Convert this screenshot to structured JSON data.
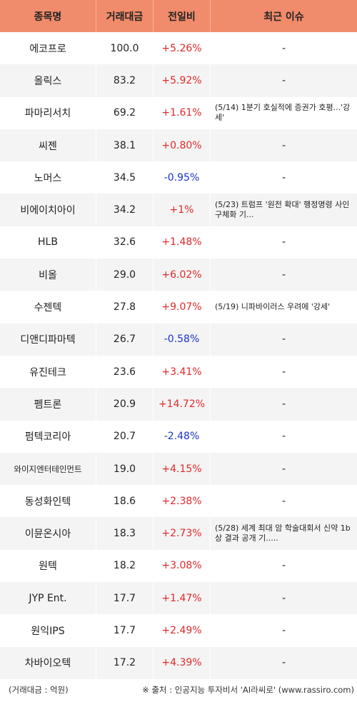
{
  "headers": [
    "종목명",
    "거래대금",
    "전일비",
    "최근 이슈"
  ],
  "rows": [
    {
      "name": "에코프로",
      "amount": "100.0",
      "change": "+5.26%",
      "dir": "pos",
      "issue": "-"
    },
    {
      "name": "올릭스",
      "amount": "83.2",
      "change": "+5.92%",
      "dir": "pos",
      "issue": "-"
    },
    {
      "name": "파마리서치",
      "amount": "69.2",
      "change": "+1.61%",
      "dir": "pos",
      "issue": "(5/14) 1분기 호실적에 증권가 호평...'강세'"
    },
    {
      "name": "씨젠",
      "amount": "38.1",
      "change": "+0.80%",
      "dir": "pos",
      "issue": "-"
    },
    {
      "name": "노머스",
      "amount": "34.5",
      "change": "-0.95%",
      "dir": "neg",
      "issue": "-"
    },
    {
      "name": "비에이치아이",
      "amount": "34.2",
      "change": "+1%",
      "dir": "pos",
      "issue": "(5/23) 트럼프 '원전 확대' 행정명령 사인 구체화 기..."
    },
    {
      "name": "HLB",
      "amount": "32.6",
      "change": "+1.48%",
      "dir": "pos",
      "issue": "-"
    },
    {
      "name": "비올",
      "amount": "29.0",
      "change": "+6.02%",
      "dir": "pos",
      "issue": "-"
    },
    {
      "name": "수젠텍",
      "amount": "27.8",
      "change": "+9.07%",
      "dir": "pos",
      "issue": "(5/19) 니파바이러스 우려에 '강세'"
    },
    {
      "name": "디앤디파마텍",
      "amount": "26.7",
      "change": "-0.58%",
      "dir": "neg",
      "issue": "-"
    },
    {
      "name": "유진테크",
      "amount": "23.6",
      "change": "+3.41%",
      "dir": "pos",
      "issue": "-"
    },
    {
      "name": "펨트론",
      "amount": "20.9",
      "change": "+14.72%",
      "dir": "pos",
      "issue": "-"
    },
    {
      "name": "펌텍코리아",
      "amount": "20.7",
      "change": "-2.48%",
      "dir": "neg",
      "issue": "-"
    },
    {
      "name": "와이지엔터테인먼트",
      "amount": "19.0",
      "change": "+4.15%",
      "dir": "pos",
      "issue": "-"
    },
    {
      "name": "동성화인텍",
      "amount": "18.6",
      "change": "+2.38%",
      "dir": "pos",
      "issue": "-"
    },
    {
      "name": "이뮨온시아",
      "amount": "18.3",
      "change": "+2.73%",
      "dir": "pos",
      "issue": "(5/28) 세계 최대 암 학술대회서 신약 1b상 결과 공개 기....."
    },
    {
      "name": "원텍",
      "amount": "18.2",
      "change": "+3.08%",
      "dir": "pos",
      "issue": "-"
    },
    {
      "name": "JYP Ent.",
      "amount": "17.7",
      "change": "+1.47%",
      "dir": "pos",
      "issue": "-"
    },
    {
      "name": "원익IPS",
      "amount": "17.7",
      "change": "+2.49%",
      "dir": "pos",
      "issue": "-"
    },
    {
      "name": "차바이오텍",
      "amount": "17.2",
      "change": "+4.39%",
      "dir": "pos",
      "issue": "-"
    }
  ],
  "footer": {
    "unit": "(거래대금 : 억원)",
    "source": "※ 출처 : 인공지능 투자비서 'AI라씨로' (www.rassiro.com)"
  }
}
